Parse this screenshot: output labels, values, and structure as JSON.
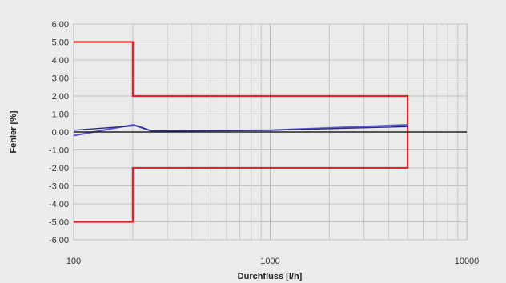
{
  "chart_data": {
    "type": "line",
    "xlabel": "Durchfluss [l/h]",
    "ylabel": "Fehler [%]",
    "x_scale": "log",
    "xlim": [
      100,
      10000
    ],
    "ylim": [
      -6,
      6
    ],
    "x_ticks": [
      {
        "value": 100,
        "label": "100"
      },
      {
        "value": 1000,
        "label": "1000"
      },
      {
        "value": 10000,
        "label": "10000"
      }
    ],
    "y_ticks": [
      {
        "value": 6,
        "label": "6,00"
      },
      {
        "value": 5,
        "label": "5,00"
      },
      {
        "value": 4,
        "label": "4,00"
      },
      {
        "value": 3,
        "label": "3,00"
      },
      {
        "value": 2,
        "label": "2,00"
      },
      {
        "value": 1,
        "label": "1,00"
      },
      {
        "value": 0,
        "label": "0,00"
      },
      {
        "value": -1,
        "label": "-1,00"
      },
      {
        "value": -2,
        "label": "-2,00"
      },
      {
        "value": -3,
        "label": "-3,00"
      },
      {
        "value": -4,
        "label": "-4,00"
      },
      {
        "value": -5,
        "label": "-5,00"
      },
      {
        "value": -6,
        "label": "-6,00"
      }
    ],
    "grid": true,
    "legend": "none",
    "series": [
      {
        "role": "upper-limit",
        "color": "#e8202a",
        "points": [
          [
            100,
            5
          ],
          [
            200,
            5
          ],
          [
            200,
            2
          ],
          [
            5000,
            2
          ],
          [
            5000,
            0
          ]
        ]
      },
      {
        "role": "lower-limit",
        "color": "#e8202a",
        "points": [
          [
            100,
            -5
          ],
          [
            200,
            -5
          ],
          [
            200,
            -2
          ],
          [
            5000,
            -2
          ],
          [
            5000,
            0
          ]
        ]
      },
      {
        "role": "measurement-a",
        "color": "#5a5ad6",
        "points": [
          [
            100,
            -0.2
          ],
          [
            200,
            0.4
          ],
          [
            250,
            0.05
          ],
          [
            1000,
            0.1
          ],
          [
            5000,
            0.4
          ]
        ]
      },
      {
        "role": "measurement-b",
        "color": "#2c2c7a",
        "points": [
          [
            100,
            0.1
          ],
          [
            210,
            0.35
          ],
          [
            250,
            0.05
          ],
          [
            1000,
            0.1
          ],
          [
            5000,
            0.3
          ]
        ]
      },
      {
        "role": "zero-line",
        "color": "#222222",
        "points": [
          [
            100,
            0
          ],
          [
            10000,
            0
          ]
        ]
      }
    ]
  }
}
